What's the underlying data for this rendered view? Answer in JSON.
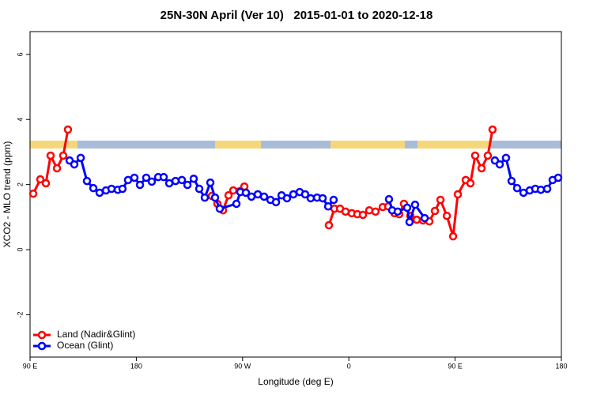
{
  "chart_data": {
    "type": "line",
    "title": "25N-30N April (Ver 10)   2015-01-01 to 2020-12-18",
    "xlabel": "Longitude (deg E)",
    "ylabel": "XCO2 - MLO trend (ppm)",
    "xlim": [
      90,
      540
    ],
    "ylim": [
      -3.3,
      6.7
    ],
    "xticks": [
      {
        "value": 90,
        "label": "90 E"
      },
      180,
      {
        "value": 270,
        "label": "90 W"
      },
      {
        "value": 360,
        "label": "0"
      },
      {
        "value": 450,
        "label": "90 E"
      },
      {
        "value": 540,
        "label": "180"
      }
    ],
    "yticks": [
      -2,
      0,
      2,
      4,
      6
    ],
    "legend": "bottom-left",
    "series": [
      {
        "name": "Land (Nadir&Glint)",
        "color": "#ff0000",
        "x": [
          92.7,
          98.7,
          103.4,
          107.4,
          112.8,
          118.1,
          122.1,
          null,
          244.0,
          248.7,
          253.4,
          258.1,
          262.1,
          271.5,
          null,
          343.1,
          347.8,
          352.5,
          357.2,
          362.5,
          367.2,
          371.9,
          377.3,
          382.6,
          388.7,
          393.4,
          398.7,
          402.7,
          406.7,
          412.1,
          417.5,
          422.8,
          428.2,
          432.9,
          437.6,
          443.0,
          448.3,
          452.3,
          459.0,
          463.0,
          467.0,
          472.4,
          477.7,
          481.7
        ],
        "values": [
          1.72,
          2.16,
          2.04,
          2.89,
          2.5,
          2.89,
          3.69,
          null,
          1.65,
          1.41,
          1.21,
          1.67,
          1.82,
          1.94,
          null,
          0.75,
          1.26,
          1.26,
          1.17,
          1.12,
          1.09,
          1.07,
          1.21,
          1.17,
          1.31,
          1.33,
          1.12,
          1.09,
          1.41,
          1.04,
          0.92,
          0.9,
          0.87,
          1.19,
          1.53,
          1.04,
          0.41,
          1.7,
          2.14,
          2.04,
          2.89,
          2.5,
          2.89,
          3.69
        ]
      },
      {
        "name": "Ocean (Glint)",
        "color": "#0000ff",
        "x": [
          123.5,
          127.5,
          132.9,
          138.2,
          143.6,
          148.9,
          154.3,
          159.0,
          164.3,
          168.3,
          173.0,
          178.4,
          183.1,
          188.4,
          193.1,
          198.5,
          203.2,
          207.9,
          213.2,
          218.6,
          223.3,
          228.6,
          233.3,
          238.0,
          242.7,
          246.7,
          250.7,
          264.8,
          268.1,
          272.8,
          277.5,
          282.9,
          288.2,
          293.6,
          298.3,
          303.0,
          307.6,
          313.0,
          318.4,
          323.0,
          327.7,
          333.1,
          337.8,
          342.5,
          347.1,
          null,
          394.0,
          396.7,
          401.4,
          409.4,
          411.4,
          416.1,
          424.2,
          null,
          483.7,
          487.8,
          493.1,
          497.8,
          502.5,
          507.9,
          513.2,
          517.9,
          522.6,
          528.0,
          532.6,
          537.3
        ],
        "values": [
          2.74,
          2.62,
          2.82,
          2.11,
          1.89,
          1.75,
          1.82,
          1.87,
          1.84,
          1.87,
          2.14,
          2.21,
          1.99,
          2.21,
          2.09,
          2.23,
          2.23,
          2.04,
          2.11,
          2.14,
          1.99,
          2.18,
          1.87,
          1.6,
          2.06,
          1.6,
          1.26,
          1.41,
          1.77,
          1.75,
          1.63,
          1.7,
          1.63,
          1.53,
          1.46,
          1.67,
          1.58,
          1.7,
          1.77,
          1.7,
          1.58,
          1.6,
          1.58,
          1.33,
          1.53,
          null,
          1.55,
          1.21,
          1.17,
          1.29,
          0.85,
          1.38,
          0.97,
          null,
          2.74,
          2.62,
          2.82,
          2.11,
          1.89,
          1.75,
          1.82,
          1.87,
          1.84,
          1.87,
          2.14,
          2.21
        ]
      }
    ]
  }
}
